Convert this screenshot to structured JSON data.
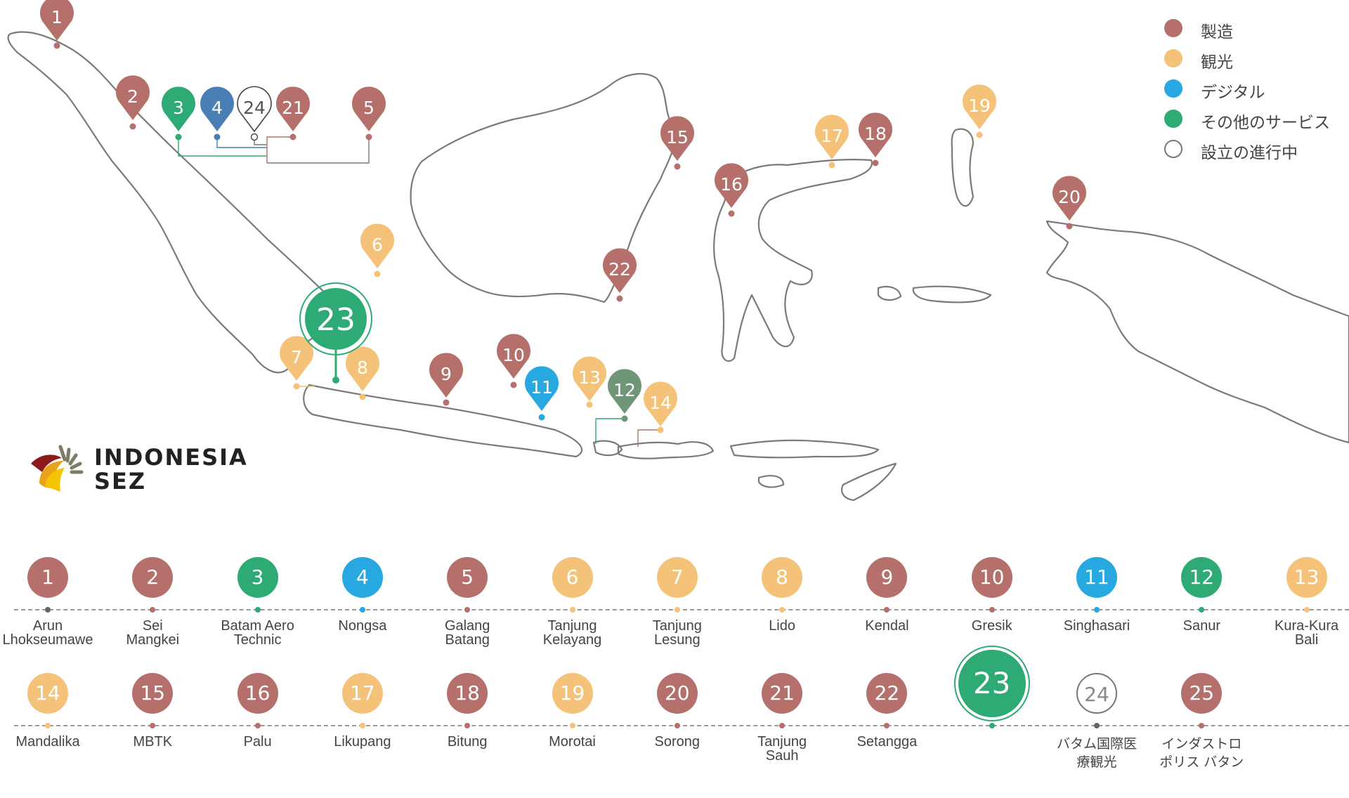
{
  "colors": {
    "manufacturing": "#b5706c",
    "tourism": "#f5c27a",
    "digital": "#27a8e0",
    "other_services": "#2eab75",
    "sanur": "#6f9677",
    "nongsa": "#4a7fb5",
    "in_progress": "#ffffff",
    "outline": "#777777"
  },
  "legend": [
    {
      "label": "製造",
      "category": "manufacturing"
    },
    {
      "label": "観光",
      "category": "tourism"
    },
    {
      "label": "デジタル",
      "category": "digital"
    },
    {
      "label": "その他のサービス",
      "category": "other_services"
    },
    {
      "label": "設立の進行中",
      "category": "in_progress"
    }
  ],
  "logo": {
    "line1": "INDONESIA",
    "line2": "SEZ"
  },
  "zones": [
    {
      "id": "1",
      "name": "Arun\nLhokseumawe",
      "category": "manufacturing"
    },
    {
      "id": "2",
      "name": "Sei\nMangkei",
      "category": "manufacturing"
    },
    {
      "id": "3",
      "name": "Batam Aero\nTechnic",
      "category": "other_services"
    },
    {
      "id": "4",
      "name": "Nongsa",
      "category": "digital"
    },
    {
      "id": "5",
      "name": "Galang\nBatang",
      "category": "manufacturing"
    },
    {
      "id": "6",
      "name": "Tanjung\nKelayang",
      "category": "tourism"
    },
    {
      "id": "7",
      "name": "Tanjung\nLesung",
      "category": "tourism"
    },
    {
      "id": "8",
      "name": "Lido",
      "category": "tourism"
    },
    {
      "id": "9",
      "name": "Kendal",
      "category": "manufacturing"
    },
    {
      "id": "10",
      "name": "Gresik",
      "category": "manufacturing"
    },
    {
      "id": "11",
      "name": "Singhasari",
      "category": "digital"
    },
    {
      "id": "12",
      "name": "Sanur",
      "category": "other_services"
    },
    {
      "id": "13",
      "name": "Kura-Kura\nBali",
      "category": "tourism"
    },
    {
      "id": "14",
      "name": "Mandalika",
      "category": "tourism"
    },
    {
      "id": "15",
      "name": "MBTK",
      "category": "manufacturing"
    },
    {
      "id": "16",
      "name": "Palu",
      "category": "manufacturing"
    },
    {
      "id": "17",
      "name": "Likupang",
      "category": "tourism"
    },
    {
      "id": "18",
      "name": "Bitung",
      "category": "manufacturing"
    },
    {
      "id": "19",
      "name": "Morotai",
      "category": "tourism"
    },
    {
      "id": "20",
      "name": "Sorong",
      "category": "manufacturing"
    },
    {
      "id": "21",
      "name": "Tanjung\nSauh",
      "category": "manufacturing"
    },
    {
      "id": "22",
      "name": "Setangga",
      "category": "manufacturing"
    },
    {
      "id": "23",
      "name": "",
      "category": "other_services"
    },
    {
      "id": "24",
      "name": "バタム国際医\n療観光",
      "category": "in_progress"
    },
    {
      "id": "25",
      "name": "インダストロ\nポリス バタン",
      "category": "manufacturing"
    }
  ],
  "map_pins": [
    {
      "id": "1",
      "category": "manufacturing"
    },
    {
      "id": "2",
      "category": "manufacturing"
    },
    {
      "id": "3",
      "category": "other_services"
    },
    {
      "id": "4",
      "category": "nongsa"
    },
    {
      "id": "24",
      "category": "in_progress"
    },
    {
      "id": "21",
      "category": "manufacturing"
    },
    {
      "id": "5",
      "category": "manufacturing"
    },
    {
      "id": "6",
      "category": "tourism"
    },
    {
      "id": "7",
      "category": "tourism"
    },
    {
      "id": "8",
      "category": "tourism"
    },
    {
      "id": "9",
      "category": "manufacturing"
    },
    {
      "id": "10",
      "category": "manufacturing"
    },
    {
      "id": "11",
      "category": "digital"
    },
    {
      "id": "13",
      "category": "tourism"
    },
    {
      "id": "12",
      "category": "sanur"
    },
    {
      "id": "14",
      "category": "tourism"
    },
    {
      "id": "15",
      "category": "manufacturing"
    },
    {
      "id": "16",
      "category": "manufacturing"
    },
    {
      "id": "17",
      "category": "tourism"
    },
    {
      "id": "18",
      "category": "manufacturing"
    },
    {
      "id": "19",
      "category": "tourism"
    },
    {
      "id": "20",
      "category": "manufacturing"
    },
    {
      "id": "22",
      "category": "manufacturing"
    }
  ],
  "map_big_marker": {
    "id": "23",
    "category": "other_services"
  }
}
